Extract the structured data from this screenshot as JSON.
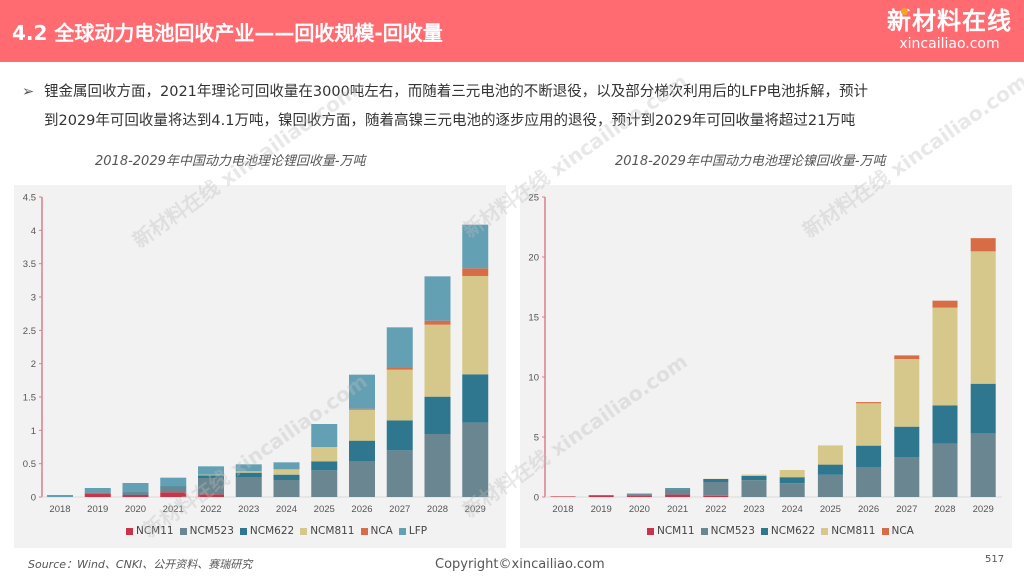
{
  "header": {
    "title": "4.2 全球动力电池回收产业——回收规模-回收量",
    "logo_cn": "新材料在线",
    "logo_en": "xincailiao.com"
  },
  "bullet": {
    "line1": "锂金属回收方面，2021年理论可回收量在3000吨左右，而随着三元电池的不断退役，以及部分梯次利用后的LFP电池拆解，预计",
    "line2": "到2029年可回收量将达到4.1万吨，镍回收方面，随着高镍三元电池的逐步应用的退役，预计到2029年可回收量将超过21万吨"
  },
  "watermark": "新材料在线 xincailiao.com",
  "footer": {
    "source": "Source：Wind、CNKI、公开资料、赛瑞研究",
    "copyright": "Copyright©xincailiao.com",
    "page": "517"
  },
  "colors": {
    "NCM11": "#c9344a",
    "NCM523": "#6a8690",
    "NCM622": "#2e778f",
    "NCM811": "#d6c88a",
    "NCA": "#d86c47",
    "LFP": "#64a0b4",
    "header": "#ff6b70"
  },
  "chart_data": [
    {
      "type": "bar",
      "stacked": true,
      "title": "2018-2029年中国动力电池理论锂回收量-万吨",
      "xlabel": "",
      "ylabel": "",
      "ylim": [
        0,
        4.5
      ],
      "yticks": [
        "0",
        "0.5",
        "1",
        "1.5",
        "2",
        "2.5",
        "3",
        "3.5",
        "4",
        "4.5"
      ],
      "grid": false,
      "legend": "bottom",
      "categories": [
        "2018",
        "2019",
        "2020",
        "2021",
        "2022",
        "2023",
        "2024",
        "2025",
        "2026",
        "2027",
        "2028",
        "2029"
      ],
      "series": [
        {
          "name": "NCM11",
          "values": [
            0,
            0.05,
            0.03,
            0.07,
            0.04,
            0,
            0,
            0,
            0,
            0,
            0,
            0
          ]
        },
        {
          "name": "NCM523",
          "values": [
            0,
            0.02,
            0.04,
            0.08,
            0.245,
            0.3,
            0.255,
            0.4,
            0.54,
            0.7,
            0.945,
            1.115
          ]
        },
        {
          "name": "NCM622",
          "values": [
            0,
            0,
            0.01,
            0.01,
            0.04,
            0.065,
            0.08,
            0.135,
            0.305,
            0.45,
            0.56,
            0.725
          ]
        },
        {
          "name": "NCM811",
          "values": [
            0,
            0,
            0,
            0,
            0.01,
            0.02,
            0.08,
            0.215,
            0.465,
            0.76,
            1.08,
            1.475
          ]
        },
        {
          "name": "NCA",
          "values": [
            0,
            0,
            0,
            0,
            0,
            0,
            0,
            0,
            0.015,
            0.025,
            0.06,
            0.115
          ]
        },
        {
          "name": "LFP",
          "values": [
            0.03,
            0.065,
            0.13,
            0.13,
            0.125,
            0.105,
            0.105,
            0.345,
            0.51,
            0.61,
            0.665,
            0.655
          ]
        }
      ]
    },
    {
      "type": "bar",
      "stacked": true,
      "title": "2018-2029年中国动力电池理论镍回收量-万吨",
      "xlabel": "",
      "ylabel": "",
      "ylim": [
        0,
        25
      ],
      "yticks": [
        "0",
        "5",
        "10",
        "15",
        "20",
        "25"
      ],
      "grid": false,
      "legend": "bottom",
      "categories": [
        "2018",
        "2019",
        "2020",
        "2021",
        "2022",
        "2023",
        "2024",
        "2025",
        "2026",
        "2027",
        "2028",
        "2029"
      ],
      "series": [
        {
          "name": "NCM11",
          "values": [
            0.05,
            0.15,
            0.08,
            0.2,
            0.1,
            0,
            0,
            0,
            0,
            0,
            0,
            0
          ]
        },
        {
          "name": "NCM523",
          "values": [
            0,
            0,
            0.15,
            0.45,
            1.15,
            1.4,
            1.15,
            1.85,
            2.5,
            3.33,
            4.44,
            5.3
          ]
        },
        {
          "name": "NCM622",
          "values": [
            0,
            0,
            0.05,
            0.08,
            0.25,
            0.35,
            0.5,
            0.85,
            1.78,
            2.53,
            3.2,
            4.14
          ]
        },
        {
          "name": "NCM811",
          "values": [
            0,
            0,
            0,
            0,
            0.02,
            0.12,
            0.6,
            1.6,
            3.53,
            5.64,
            8.14,
            11.03
          ]
        },
        {
          "name": "NCA",
          "values": [
            0,
            0,
            0,
            0,
            0,
            0,
            0,
            0,
            0.1,
            0.3,
            0.58,
            1.1
          ]
        }
      ]
    }
  ]
}
